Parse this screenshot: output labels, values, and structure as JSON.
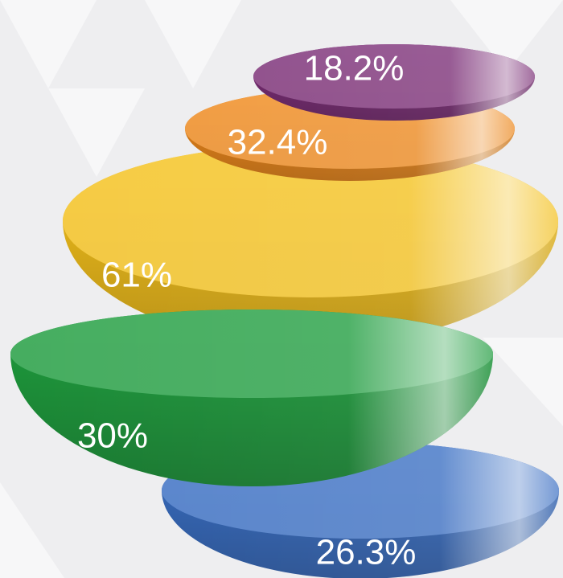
{
  "slices": [
    {
      "label": "26.3%",
      "color": "#3a6fc4"
    },
    {
      "label": "61%",
      "color": "#f6c21c"
    },
    {
      "label": "30%",
      "color": "#1f9e3e"
    },
    {
      "label": "32.4%",
      "color": "#f08a1c"
    },
    {
      "label": "18.2%",
      "color": "#7d2f78"
    }
  ]
}
